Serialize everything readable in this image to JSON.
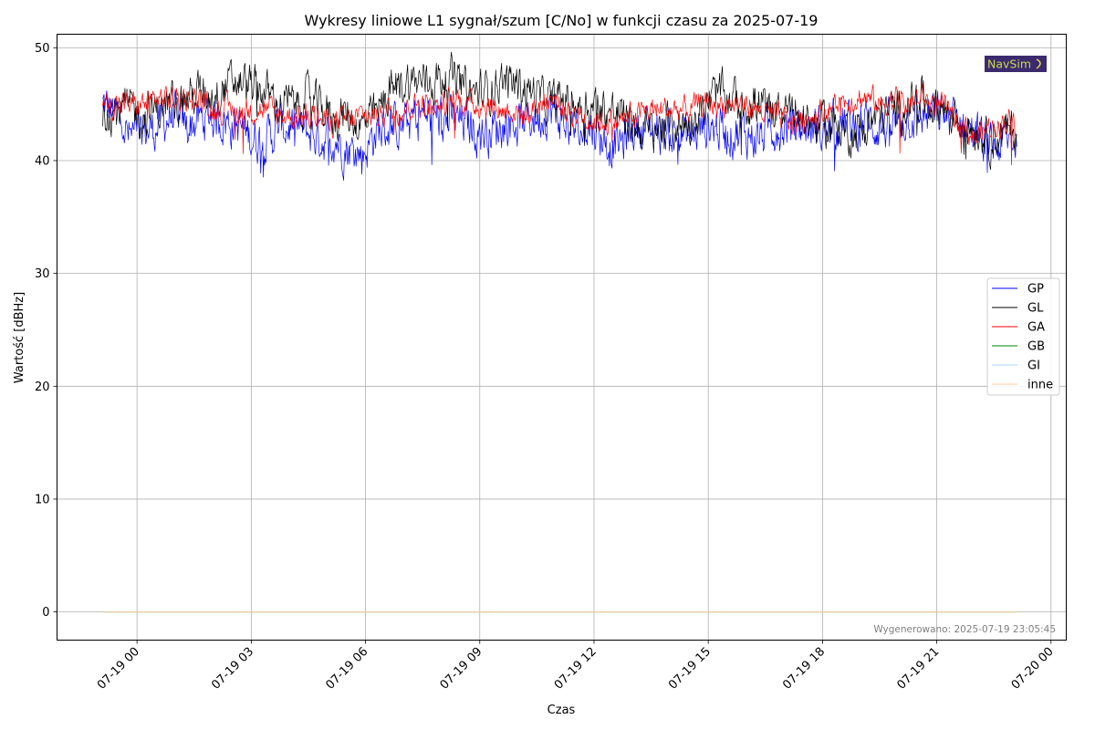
{
  "chart_data": {
    "type": "line",
    "title": "Wykresy liniowe L1 sygnał/szum [C/No] w funkcji czasu za 2025-07-19",
    "xlabel": "Czas",
    "ylabel": "Wartość [dBHz]",
    "ylim": [
      -2.5,
      51.2
    ],
    "yticks": [
      0,
      10,
      20,
      30,
      40,
      50
    ],
    "xlim_hours": [
      -2.1,
      24.4
    ],
    "xticks": [
      {
        "hour": 0,
        "label": "07-19 00"
      },
      {
        "hour": 3,
        "label": "07-19 03"
      },
      {
        "hour": 6,
        "label": "07-19 06"
      },
      {
        "hour": 9,
        "label": "07-19 09"
      },
      {
        "hour": 12,
        "label": "07-19 12"
      },
      {
        "hour": 15,
        "label": "07-19 15"
      },
      {
        "hour": 18,
        "label": "07-19 18"
      },
      {
        "hour": 21,
        "label": "07-19 21"
      },
      {
        "hour": 24,
        "label": "07-20 00"
      }
    ],
    "grid": true,
    "legend_position": "center-right",
    "x_start_hour": -0.9,
    "x_end_hour": 23.1,
    "series": [
      {
        "name": "GP",
        "color": "#0000ff",
        "trend": [
          45,
          44,
          42,
          42.5,
          43,
          44,
          43,
          43.5,
          44,
          43.5,
          43,
          42,
          42,
          43,
          43,
          42.5,
          42,
          42,
          41,
          40.5,
          42.5,
          43,
          43,
          44,
          44,
          43.5,
          43.5,
          43,
          42.5,
          43,
          43.5,
          43.5,
          44,
          44.5,
          43,
          42.5,
          43,
          41.5,
          41.5,
          43,
          43,
          42.5,
          42.5,
          42,
          43,
          43,
          42.5,
          42.5,
          42,
          43,
          43,
          43,
          43,
          42.5,
          43.5,
          43,
          43.5,
          43,
          43,
          44,
          44,
          44,
          44,
          43.5,
          42.5,
          41,
          41.5,
          42
        ],
        "noise": 1.6
      },
      {
        "name": "GL",
        "color": "#000000",
        "trend": [
          44.5,
          44.5,
          44.5,
          44,
          44.5,
          45,
          45.5,
          46,
          46,
          46.5,
          47,
          46.5,
          46,
          45,
          45,
          45.5,
          44.5,
          44,
          44,
          43,
          44,
          46,
          47,
          47,
          47,
          47.5,
          47,
          46,
          46,
          47,
          47,
          46.5,
          45.5,
          45,
          45.5,
          45,
          45,
          44.5,
          44,
          43,
          42.5,
          43,
          43,
          43.5,
          44.5,
          46,
          45.5,
          45,
          45,
          44.5,
          44.5,
          44,
          43.5,
          43,
          43,
          42.5,
          43,
          44,
          44.5,
          45,
          45.5,
          45,
          44.5,
          43.5,
          43,
          42,
          42.5,
          42.5
        ],
        "noise": 1.5
      },
      {
        "name": "GA",
        "color": "#ff0000",
        "trend": [
          45,
          45,
          45,
          45,
          45.5,
          45.5,
          45.5,
          45.5,
          44.5,
          44.5,
          44.5,
          44.5,
          44.5,
          44,
          44,
          44,
          43.5,
          43.5,
          43.5,
          44,
          44,
          44.5,
          44.5,
          45,
          45,
          45,
          45.5,
          45,
          45,
          44.5,
          44.5,
          44,
          45,
          45.5,
          44.5,
          44,
          43.5,
          43.5,
          43.5,
          44,
          44.5,
          44.5,
          44.5,
          44.5,
          45,
          45,
          45,
          45,
          44.5,
          44,
          43.5,
          43.5,
          44,
          44.5,
          45,
          45.5,
          45.5,
          45,
          45.5,
          45,
          45.5,
          45,
          44.5,
          43,
          42,
          43,
          43.5,
          43.5
        ],
        "noise": 0.9
      },
      {
        "name": "GB",
        "color": "#008000",
        "trend": [
          0,
          0
        ],
        "noise": 0
      },
      {
        "name": "GI",
        "color": "#aad4ff",
        "trend": [
          0,
          0
        ],
        "noise": 0
      },
      {
        "name": "inne",
        "color": "#ffcc99",
        "trend": [
          0,
          0
        ],
        "noise": 0
      }
    ]
  },
  "logo": {
    "text": "NavSim",
    "bg": "#3b2a6e",
    "fg": "#c9d94a"
  },
  "footer": {
    "text": "Wygenerowano: 2025-07-19 23:05:45"
  }
}
